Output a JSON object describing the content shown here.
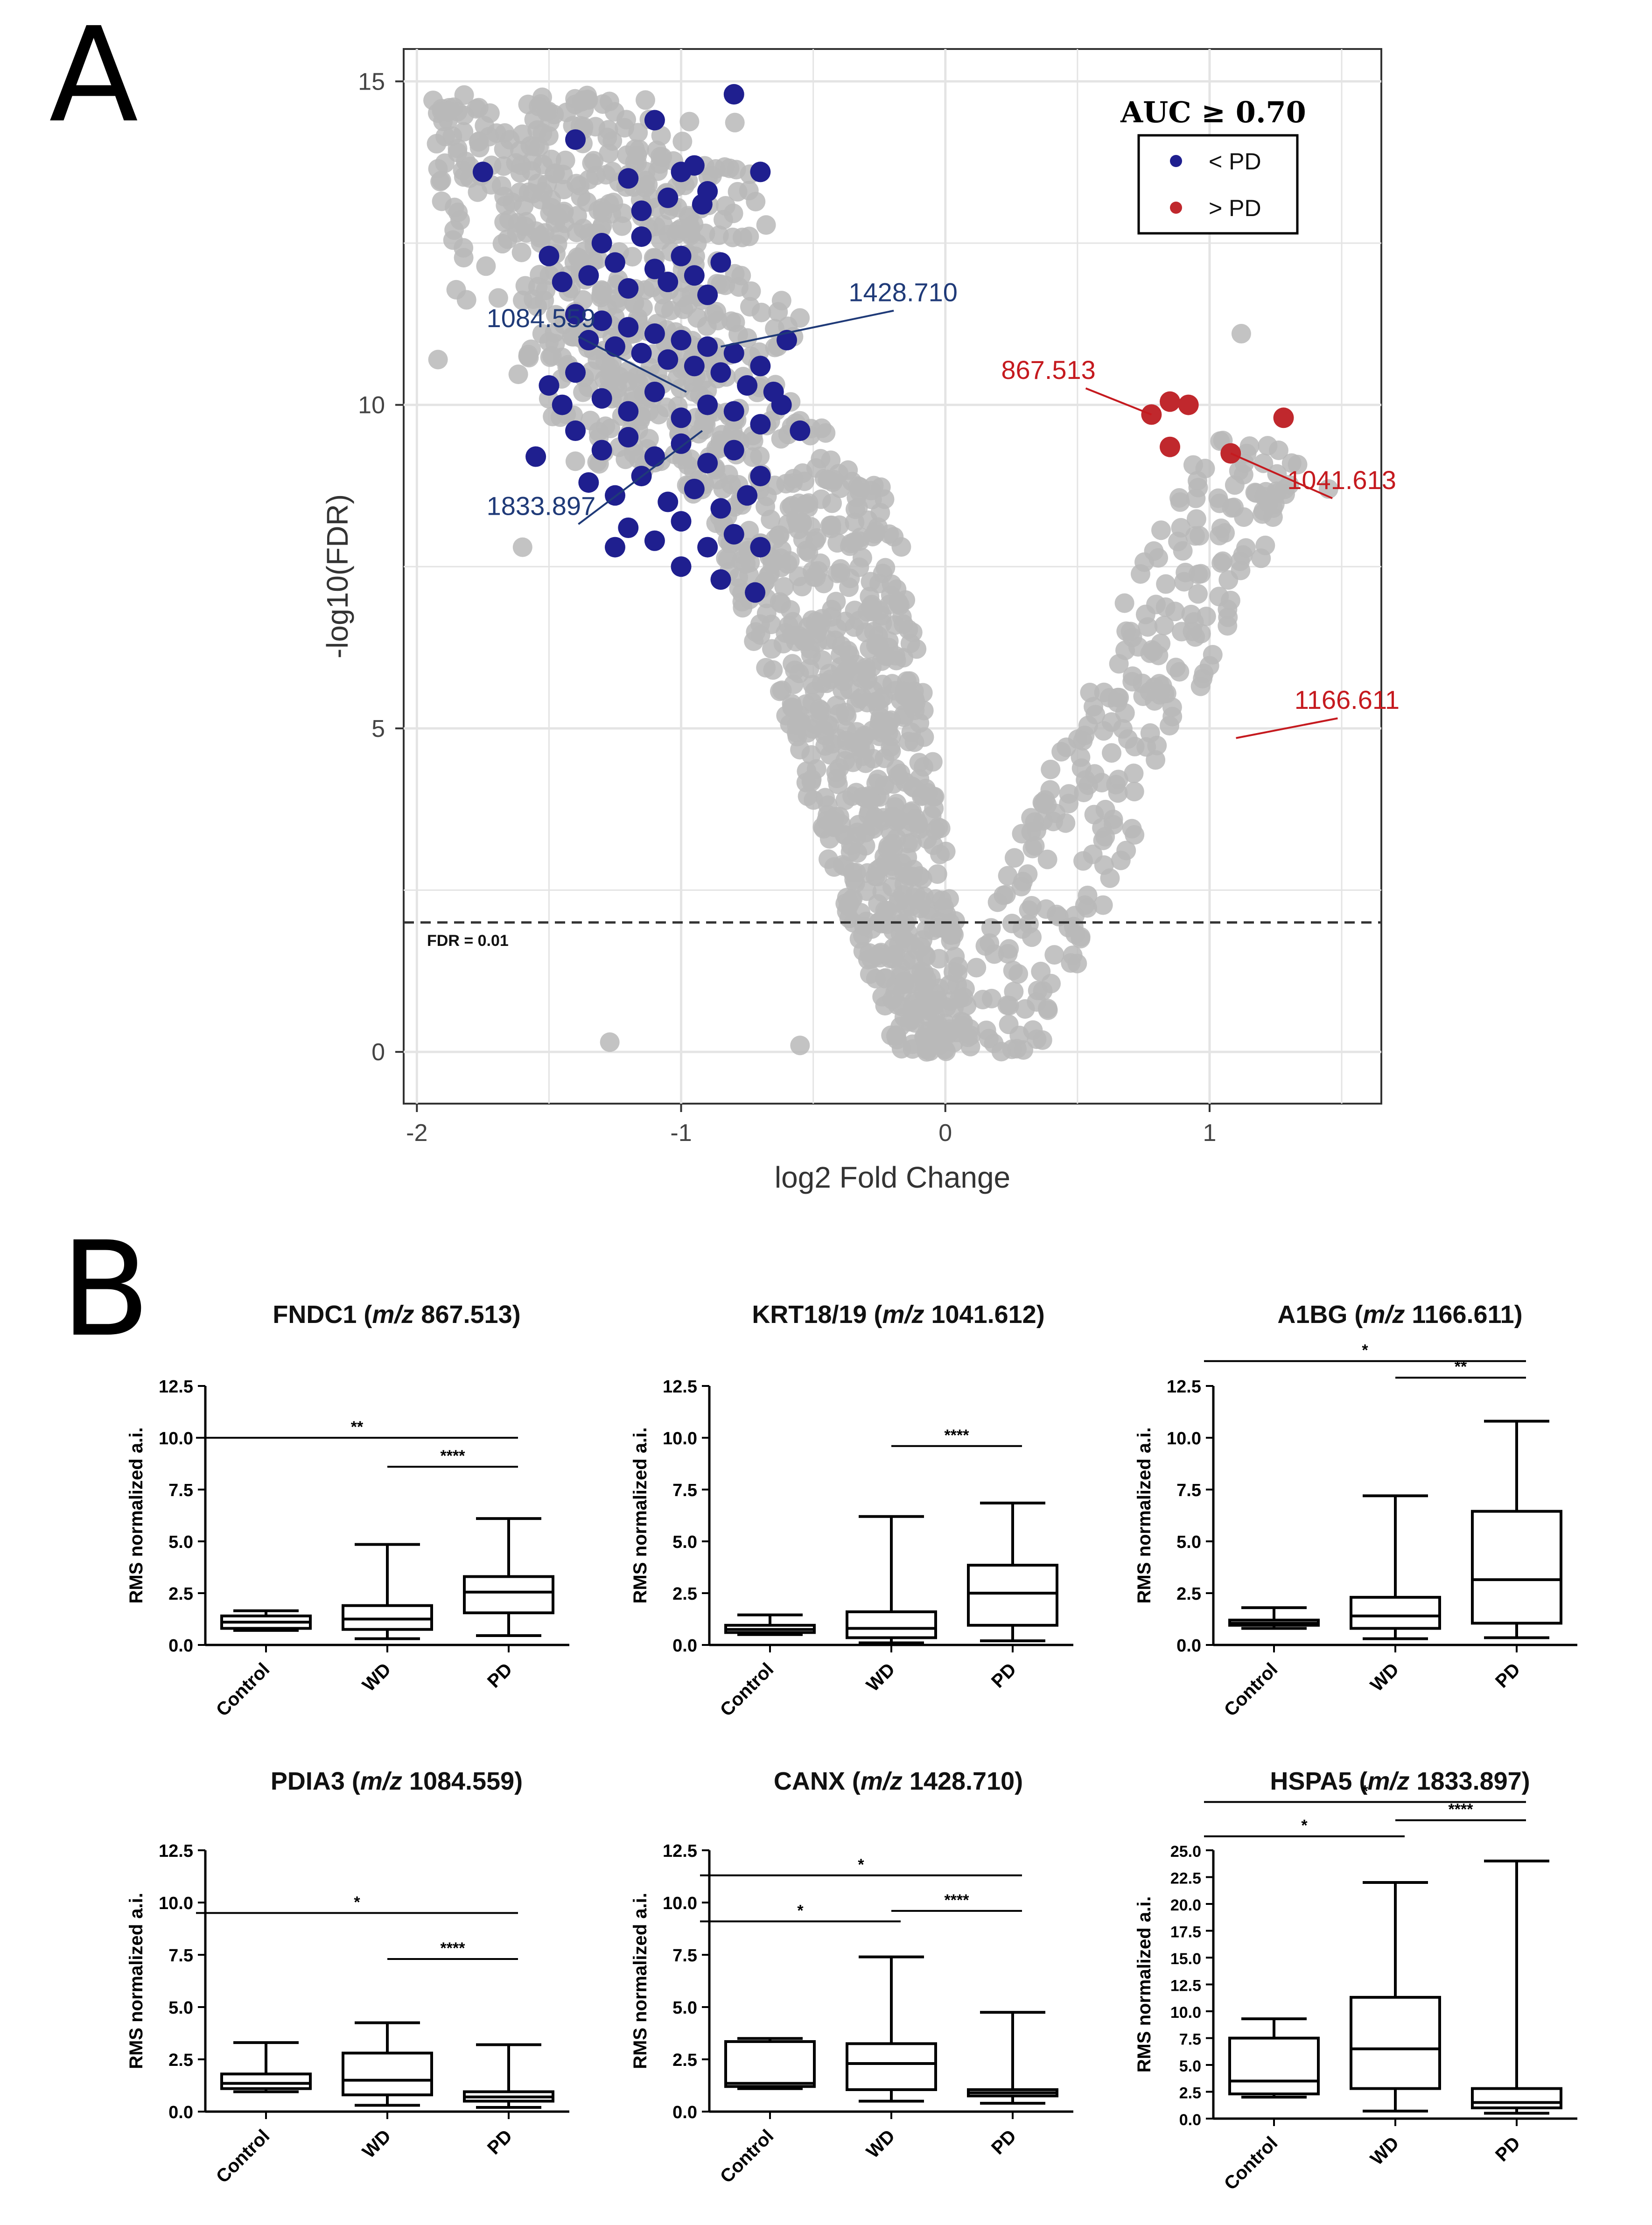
{
  "panel_a": {
    "letter": "A",
    "chart_data": {
      "type": "scatter",
      "title": "",
      "xlabel": "log2 Fold Change",
      "ylabel": "-log10(FDR)",
      "xlim": [
        -2.05,
        1.65
      ],
      "ylim": [
        -0.8,
        15.5
      ],
      "x_ticks": [
        -2,
        -1,
        0,
        1
      ],
      "y_ticks": [
        0,
        5,
        10,
        15
      ],
      "grid": true,
      "threshold": {
        "y": 2,
        "label": "FDR = 0.01"
      },
      "legend": {
        "title": "AUC ≥ 0.70",
        "placement": "top-right",
        "entries": [
          {
            "label": "< PD",
            "color": "#1f1f8f"
          },
          {
            "label": "> PD",
            "color": "#c0282d"
          }
        ]
      },
      "colors": {
        "grey": "#b8b8b8",
        "blue": "#1f1f8f",
        "red": "#c0282d",
        "blue_label": "#1f3a78",
        "red_label": "#c51a1f"
      },
      "blue_points": [
        [
          -1.75,
          13.6
        ],
        [
          -1.4,
          14.1
        ],
        [
          -1.2,
          13.5
        ],
        [
          -1.1,
          14.4
        ],
        [
          -0.95,
          13.7
        ],
        [
          -0.9,
          13.3
        ],
        [
          -0.8,
          14.8
        ],
        [
          -0.7,
          13.6
        ],
        [
          -1.5,
          12.3
        ],
        [
          -1.45,
          11.9
        ],
        [
          -1.35,
          12.0
        ],
        [
          -1.3,
          12.5
        ],
        [
          -1.25,
          12.2
        ],
        [
          -1.2,
          11.8
        ],
        [
          -1.15,
          12.6
        ],
        [
          -1.1,
          12.1
        ],
        [
          -1.05,
          11.9
        ],
        [
          -1.0,
          12.3
        ],
        [
          -0.95,
          12.0
        ],
        [
          -0.9,
          11.7
        ],
        [
          -0.85,
          12.2
        ],
        [
          -1.4,
          11.4
        ],
        [
          -1.35,
          11.0
        ],
        [
          -1.3,
          11.3
        ],
        [
          -1.25,
          10.9
        ],
        [
          -1.2,
          11.2
        ],
        [
          -1.15,
          10.8
        ],
        [
          -1.1,
          11.1
        ],
        [
          -1.05,
          10.7
        ],
        [
          -1.0,
          11.0
        ],
        [
          -0.95,
          10.6
        ],
        [
          -0.9,
          10.9
        ],
        [
          -0.85,
          10.5
        ],
        [
          -0.8,
          10.8
        ],
        [
          -0.75,
          10.3
        ],
        [
          -0.7,
          10.6
        ],
        [
          -0.65,
          10.2
        ],
        [
          -1.5,
          10.3
        ],
        [
          -1.45,
          10.0
        ],
        [
          -1.4,
          10.5
        ],
        [
          -1.3,
          10.1
        ],
        [
          -1.2,
          9.9
        ],
        [
          -1.1,
          10.2
        ],
        [
          -1.0,
          9.8
        ],
        [
          -0.9,
          10.0
        ],
        [
          -0.8,
          9.9
        ],
        [
          -0.7,
          9.7
        ],
        [
          -1.55,
          9.2
        ],
        [
          -1.4,
          9.6
        ],
        [
          -1.3,
          9.3
        ],
        [
          -1.2,
          9.5
        ],
        [
          -1.1,
          9.2
        ],
        [
          -1.0,
          9.4
        ],
        [
          -0.9,
          9.1
        ],
        [
          -0.8,
          9.3
        ],
        [
          -0.7,
          8.9
        ],
        [
          -1.35,
          8.8
        ],
        [
          -1.25,
          8.6
        ],
        [
          -1.15,
          8.9
        ],
        [
          -1.05,
          8.5
        ],
        [
          -0.95,
          8.7
        ],
        [
          -0.85,
          8.4
        ],
        [
          -0.75,
          8.6
        ],
        [
          -1.2,
          8.1
        ],
        [
          -1.1,
          7.9
        ],
        [
          -1.0,
          8.2
        ],
        [
          -0.9,
          7.8
        ],
        [
          -0.8,
          8.0
        ],
        [
          -0.7,
          7.8
        ],
        [
          -1.0,
          7.5
        ],
        [
          -0.85,
          7.3
        ],
        [
          -0.72,
          7.1
        ],
        [
          -1.25,
          7.8
        ],
        [
          -1.15,
          13.0
        ],
        [
          -1.0,
          13.6
        ],
        [
          -0.92,
          13.1
        ],
        [
          -1.05,
          13.2
        ],
        [
          -0.6,
          11.0
        ],
        [
          -0.62,
          10.0
        ],
        [
          -0.55,
          9.6
        ]
      ],
      "red_points": [
        [
          0.78,
          9.85
        ],
        [
          0.85,
          10.05
        ],
        [
          0.85,
          9.35
        ],
        [
          0.92,
          10.0
        ],
        [
          1.08,
          9.25
        ],
        [
          1.28,
          9.8
        ]
      ],
      "annotations": [
        {
          "label": "1084.559",
          "color": "blue",
          "text_at": [
            -1.53,
            11.2
          ],
          "point": [
            -0.98,
            10.2
          ]
        },
        {
          "label": "1428.710",
          "color": "blue",
          "text_at": [
            -0.16,
            11.6
          ],
          "point": [
            -0.85,
            10.9
          ]
        },
        {
          "label": "1833.897",
          "color": "blue",
          "text_at": [
            -1.53,
            8.3
          ],
          "point": [
            -0.92,
            9.6
          ]
        },
        {
          "label": "867.513",
          "color": "red",
          "text_at": [
            0.39,
            10.4
          ],
          "point": [
            0.78,
            9.85
          ]
        },
        {
          "label": "1041.613",
          "color": "red",
          "text_at": [
            1.5,
            8.7
          ],
          "point": [
            1.08,
            9.25
          ]
        },
        {
          "label": "1166.611",
          "color": "red",
          "text_at": [
            1.52,
            5.3
          ],
          "point": [
            1.1,
            4.85
          ]
        }
      ]
    }
  },
  "panel_b": {
    "letter": "B",
    "chart_data": [
      {
        "type": "box",
        "protein": "FNDC1",
        "mz_label": "m/z",
        "mz_value": " 867.513)",
        "ylabel": "RMS normalized a.i.",
        "ylim": [
          0,
          12.5
        ],
        "y_ticks": [
          "0.0",
          "2.5",
          "5.0",
          "7.5",
          "10.0",
          "12.5"
        ],
        "categories": [
          "Control",
          "WD",
          "PD"
        ],
        "boxes": [
          {
            "min": 0.7,
            "q1": 0.8,
            "med": 1.1,
            "q3": 1.4,
            "max": 1.65
          },
          {
            "min": 0.3,
            "q1": 0.75,
            "med": 1.25,
            "q3": 1.9,
            "max": 4.85
          },
          {
            "min": 0.45,
            "q1": 1.55,
            "med": 2.55,
            "q3": 3.3,
            "max": 6.1
          }
        ],
        "sig": [
          {
            "from": 0,
            "to": 2,
            "y": 10.0,
            "label": "**"
          },
          {
            "from": 1,
            "to": 2,
            "y": 8.6,
            "label": "****"
          }
        ]
      },
      {
        "type": "box",
        "protein": "KRT18/19",
        "mz_label": "m/z",
        "mz_value": " 1041.612)",
        "ylabel": "RMS normalized a.i.",
        "ylim": [
          0,
          12.5
        ],
        "y_ticks": [
          "0.0",
          "2.5",
          "5.0",
          "7.5",
          "10.0",
          "12.5"
        ],
        "categories": [
          "Control",
          "WD",
          "PD"
        ],
        "boxes": [
          {
            "min": 0.5,
            "q1": 0.6,
            "med": 0.75,
            "q3": 0.95,
            "max": 1.45
          },
          {
            "min": 0.1,
            "q1": 0.35,
            "med": 0.8,
            "q3": 1.6,
            "max": 6.2
          },
          {
            "min": 0.2,
            "q1": 0.95,
            "med": 2.5,
            "q3": 3.85,
            "max": 6.85
          }
        ],
        "sig": [
          {
            "from": 1,
            "to": 2,
            "y": 9.6,
            "label": "****"
          }
        ]
      },
      {
        "type": "box",
        "protein": "A1BG",
        "mz_label": "m/z",
        "mz_value": " 1166.611)",
        "ylabel": "RMS normalized a.i.",
        "ylim": [
          0,
          12.5
        ],
        "y_ticks": [
          "0.0",
          "2.5",
          "5.0",
          "7.5",
          "10.0",
          "12.5"
        ],
        "categories": [
          "Control",
          "WD",
          "PD"
        ],
        "boxes": [
          {
            "min": 0.8,
            "q1": 0.95,
            "med": 1.05,
            "q3": 1.2,
            "max": 1.8
          },
          {
            "min": 0.3,
            "q1": 0.8,
            "med": 1.4,
            "q3": 2.3,
            "max": 7.2
          },
          {
            "min": 0.35,
            "q1": 1.05,
            "med": 3.15,
            "q3": 6.45,
            "max": 10.8
          }
        ],
        "sig": [
          {
            "from": 0,
            "to": 2,
            "y": 13.7,
            "label": "*"
          },
          {
            "from": 1,
            "to": 2,
            "y": 12.9,
            "label": "**"
          }
        ]
      },
      {
        "type": "box",
        "protein": "PDIA3",
        "mz_label": "m/z",
        "mz_value": " 1084.559)",
        "ylabel": "RMS normalized a.i.",
        "ylim": [
          0,
          12.5
        ],
        "y_ticks": [
          "0.0",
          "2.5",
          "5.0",
          "7.5",
          "10.0",
          "12.5"
        ],
        "categories": [
          "Control",
          "WD",
          "PD"
        ],
        "boxes": [
          {
            "min": 0.95,
            "q1": 1.1,
            "med": 1.35,
            "q3": 1.8,
            "max": 3.3
          },
          {
            "min": 0.3,
            "q1": 0.8,
            "med": 1.5,
            "q3": 2.8,
            "max": 4.25
          },
          {
            "min": 0.2,
            "q1": 0.5,
            "med": 0.7,
            "q3": 0.95,
            "max": 3.2
          }
        ],
        "sig": [
          {
            "from": 0,
            "to": 2,
            "y": 9.5,
            "label": "*"
          },
          {
            "from": 1,
            "to": 2,
            "y": 7.3,
            "label": "****"
          }
        ]
      },
      {
        "type": "box",
        "protein": "CANX",
        "mz_label": "m/z",
        "mz_value": " 1428.710)",
        "ylabel": "RMS normalized a.i.",
        "ylim": [
          0,
          12.5
        ],
        "y_ticks": [
          "0.0",
          "2.5",
          "5.0",
          "7.5",
          "10.0",
          "12.5"
        ],
        "categories": [
          "Control",
          "WD",
          "PD"
        ],
        "boxes": [
          {
            "min": 1.1,
            "q1": 1.2,
            "med": 1.35,
            "q3": 3.35,
            "max": 3.5
          },
          {
            "min": 0.5,
            "q1": 1.05,
            "med": 2.3,
            "q3": 3.25,
            "max": 7.4
          },
          {
            "min": 0.4,
            "q1": 0.75,
            "med": 0.9,
            "q3": 1.05,
            "max": 4.75
          }
        ],
        "sig": [
          {
            "from": 0,
            "to": 2,
            "y": 11.3,
            "label": "*"
          },
          {
            "from": 0,
            "to": 1,
            "y": 9.1,
            "label": "*"
          },
          {
            "from": 1,
            "to": 2,
            "y": 9.6,
            "label": "****"
          }
        ]
      },
      {
        "type": "box",
        "protein": "HSPA5",
        "mz_label": "m/z",
        "mz_value": " 1833.897)",
        "ylabel": "RMS normalized a.i.",
        "ylim": [
          0,
          25
        ],
        "y_ticks": [
          "0.0",
          "2.5",
          "5.0",
          "7.5",
          "10.0",
          "12.5",
          "15.0",
          "17.5",
          "20.0",
          "22.5",
          "25.0"
        ],
        "categories": [
          "Control",
          "WD",
          "PD"
        ],
        "boxes": [
          {
            "min": 2.0,
            "q1": 2.3,
            "med": 3.5,
            "q3": 7.5,
            "max": 9.3
          },
          {
            "min": 0.7,
            "q1": 2.8,
            "med": 6.5,
            "q3": 11.3,
            "max": 22.0
          },
          {
            "min": 0.5,
            "q1": 1.0,
            "med": 1.5,
            "q3": 2.8,
            "max": 24.0
          }
        ],
        "sig": [
          {
            "from": 0,
            "to": 2,
            "y": 29.5,
            "label": "*"
          },
          {
            "from": 0,
            "to": 1,
            "y": 26.3,
            "label": "*"
          },
          {
            "from": 1,
            "to": 2,
            "y": 27.8,
            "label": "****"
          }
        ]
      }
    ]
  }
}
